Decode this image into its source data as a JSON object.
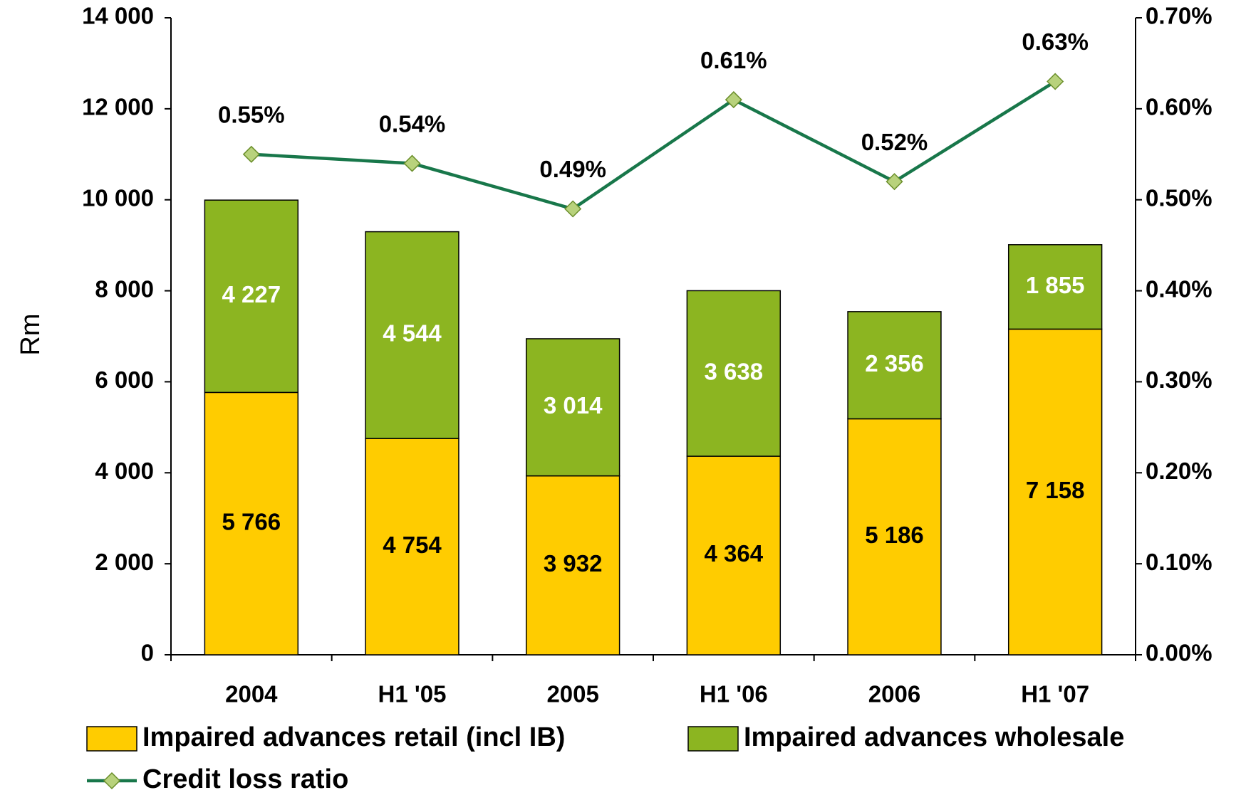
{
  "chart_data": {
    "type": "bar",
    "ylabel": "Rm",
    "categories": [
      "2004",
      "H1 '05",
      "2005",
      "H1 '06",
      "2006",
      "H1 '07"
    ],
    "series": [
      {
        "name": "Impaired advances retail (incl IB)",
        "color": "#ffcc00",
        "values": [
          5766,
          4754,
          3932,
          4364,
          5186,
          7158
        ],
        "value_labels": [
          "5 766",
          "4 754",
          "3 932",
          "4 364",
          "5 186",
          "7 158"
        ]
      },
      {
        "name": "Impaired advances wholesale",
        "color": "#8cb521",
        "values": [
          4227,
          4544,
          3014,
          3638,
          2356,
          1855
        ],
        "value_labels": [
          "4 227",
          "4 544",
          "3 014",
          "3 638",
          "2 356",
          "1 855"
        ]
      },
      {
        "name": "Credit loss ratio",
        "type": "line",
        "axis": "y2",
        "color": "#18774a",
        "marker_color": "#b8d27c",
        "values": [
          0.55,
          0.54,
          0.49,
          0.61,
          0.52,
          0.63
        ],
        "value_labels": [
          "0.55%",
          "0.54%",
          "0.49%",
          "0.61%",
          "0.52%",
          "0.63%"
        ]
      }
    ],
    "ylim": [
      0,
      14000
    ],
    "yticks": [
      0,
      {
        "value": 2000,
        "label": "2 000"
      },
      {
        "value": 4000,
        "label": "4 000"
      },
      {
        "value": 6000,
        "label": "6 000"
      },
      {
        "value": 8000,
        "label": "8 000"
      },
      {
        "value": 10000,
        "label": "10 000"
      },
      {
        "value": 12000,
        "label": "12 000"
      },
      {
        "value": 14000,
        "label": "14 000"
      }
    ],
    "y2lim": [
      0,
      0.7
    ],
    "y2ticks": [
      {
        "value": 0,
        "label": "0.00%"
      },
      {
        "value": 0.1,
        "label": "0.10%"
      },
      {
        "value": 0.2,
        "label": "0.20%"
      },
      {
        "value": 0.3,
        "label": "0.30%"
      },
      {
        "value": 0.4,
        "label": "0.40%"
      },
      {
        "value": 0.5,
        "label": "0.50%"
      },
      {
        "value": 0.6,
        "label": "0.60%"
      },
      {
        "value": 0.7,
        "label": "0.70%"
      }
    ],
    "grid": false,
    "legend": "bottom"
  }
}
